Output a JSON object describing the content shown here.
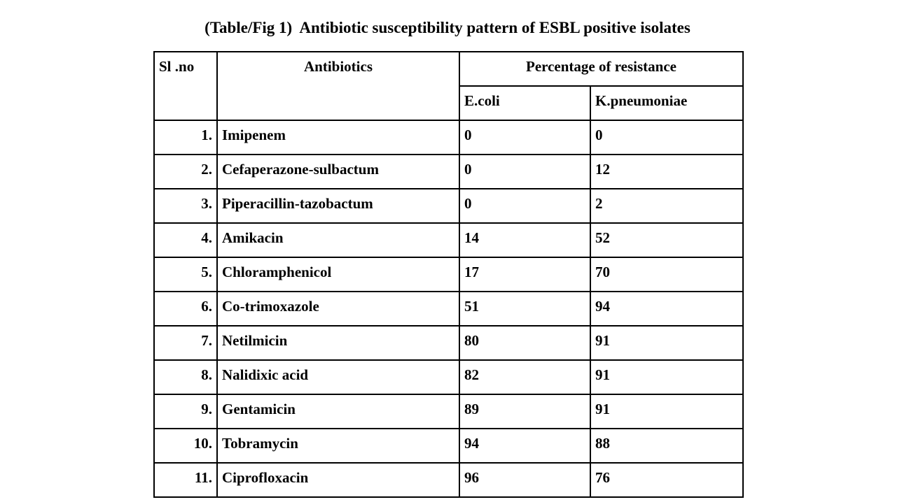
{
  "title": "(Table/Fig 1)  Antibiotic susceptibility pattern of ESBL positive isolates",
  "table": {
    "header": {
      "sl_no": "Sl .no",
      "antibiotics": "Antibiotics",
      "resistance_group": "Percentage of resistance",
      "ecoli": "E.coli",
      "kpneumoniae": "K.pneumoniae"
    },
    "rows": [
      {
        "sl": "1.",
        "antibiotic": "Imipenem",
        "ecoli": "0",
        "kpneumoniae": "0"
      },
      {
        "sl": "2.",
        "antibiotic": "Cefaperazone-sulbactum",
        "ecoli": "0",
        "kpneumoniae": "12"
      },
      {
        "sl": "3.",
        "antibiotic": "Piperacillin-tazobactum",
        "ecoli": "0",
        "kpneumoniae": "2"
      },
      {
        "sl": "4.",
        "antibiotic": "Amikacin",
        "ecoli": "14",
        "kpneumoniae": "52"
      },
      {
        "sl": "5.",
        "antibiotic": "Chloramphenicol",
        "ecoli": "17",
        "kpneumoniae": "70"
      },
      {
        "sl": "6.",
        "antibiotic": "Co-trimoxazole",
        "ecoli": "51",
        "kpneumoniae": "94"
      },
      {
        "sl": "7.",
        "antibiotic": "Netilmicin",
        "ecoli": "80",
        "kpneumoniae": "91"
      },
      {
        "sl": "8.",
        "antibiotic": "Nalidixic acid",
        "ecoli": "82",
        "kpneumoniae": "91"
      },
      {
        "sl": "9.",
        "antibiotic": "Gentamicin",
        "ecoli": "89",
        "kpneumoniae": "91"
      },
      {
        "sl": "10.",
        "antibiotic": "Tobramycin",
        "ecoli": "94",
        "kpneumoniae": "88"
      },
      {
        "sl": "11.",
        "antibiotic": "Ciprofloxacin",
        "ecoli": "96",
        "kpneumoniae": "76"
      }
    ]
  },
  "chart_data": {
    "type": "table",
    "title": "(Table/Fig 1)  Antibiotic susceptibility pattern of ESBL positive isolates",
    "columns": [
      "Sl .no",
      "Antibiotics",
      "Percentage of resistance - E.coli",
      "Percentage of resistance - K.pneumoniae"
    ],
    "categories": [
      "Imipenem",
      "Cefaperazone-sulbactum",
      "Piperacillin-tazobactum",
      "Amikacin",
      "Chloramphenicol",
      "Co-trimoxazole",
      "Netilmicin",
      "Nalidixic acid",
      "Gentamicin",
      "Tobramycin",
      "Ciprofloxacin"
    ],
    "series": [
      {
        "name": "E.coli",
        "values": [
          0,
          0,
          0,
          14,
          17,
          51,
          80,
          82,
          89,
          94,
          96
        ]
      },
      {
        "name": "K.pneumoniae",
        "values": [
          0,
          12,
          2,
          52,
          70,
          94,
          91,
          91,
          91,
          88,
          76
        ]
      }
    ]
  }
}
